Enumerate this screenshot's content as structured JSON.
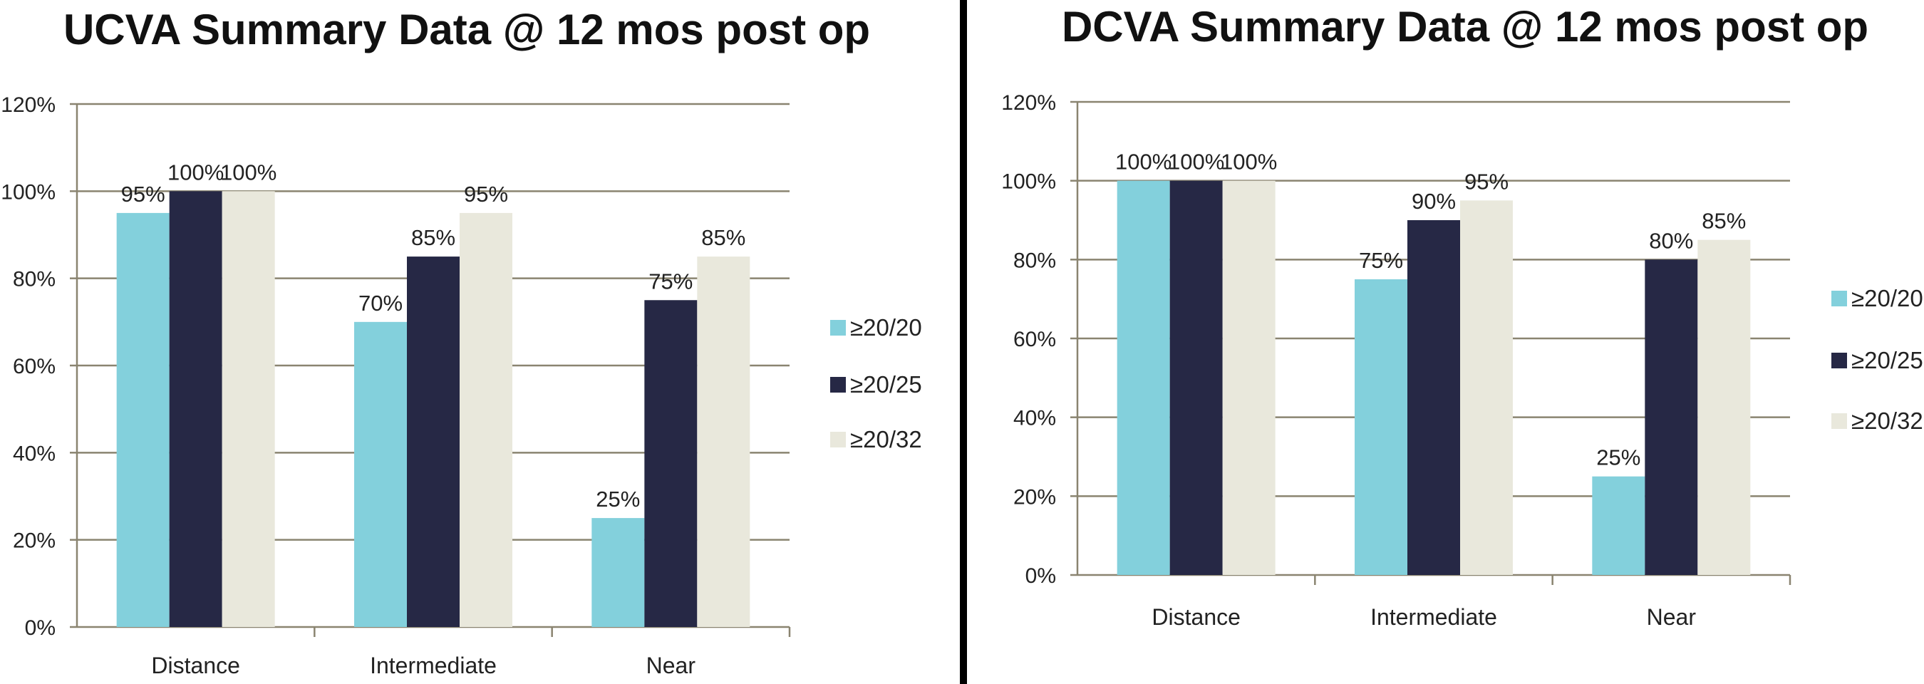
{
  "chart_data": [
    {
      "type": "bar",
      "title": "UCVA Summary Data @ 12 mos post op",
      "categories": [
        "Distance",
        "Intermediate",
        "Near"
      ],
      "series": [
        {
          "name": "≥20/20",
          "values": [
            95,
            70,
            25
          ],
          "labels": [
            "95%",
            "70%",
            "25%"
          ]
        },
        {
          "name": "≥20/25",
          "values": [
            100,
            85,
            75
          ],
          "labels": [
            "100%",
            "85%",
            "75%"
          ]
        },
        {
          "name": "≥20/32",
          "values": [
            100,
            95,
            85
          ],
          "labels": [
            "100%",
            "95%",
            "85%"
          ]
        }
      ],
      "ylim": [
        0,
        120
      ],
      "yticks": [
        "0%",
        "20%",
        "40%",
        "60%",
        "80%",
        "100%",
        "120%"
      ],
      "grid": true,
      "legend_position": "right",
      "xlabel": "",
      "ylabel": ""
    },
    {
      "type": "bar",
      "title": "DCVA Summary Data @ 12 mos post op",
      "categories": [
        "Distance",
        "Intermediate",
        "Near"
      ],
      "series": [
        {
          "name": "≥20/20",
          "values": [
            100,
            75,
            25
          ],
          "labels": [
            "100%",
            "75%",
            "25%"
          ]
        },
        {
          "name": "≥20/25",
          "values": [
            100,
            90,
            80
          ],
          "labels": [
            "100%",
            "90%",
            "80%"
          ]
        },
        {
          "name": "≥20/32",
          "values": [
            100,
            95,
            85
          ],
          "labels": [
            "100%",
            "95%",
            "85%"
          ]
        }
      ],
      "ylim": [
        0,
        120
      ],
      "yticks": [
        "0%",
        "20%",
        "40%",
        "60%",
        "80%",
        "100%",
        "120%"
      ],
      "grid": true,
      "legend_position": "right",
      "xlabel": "",
      "ylabel": ""
    }
  ],
  "colors": {
    "series": [
      "#83d0dc",
      "#262845",
      "#e9e8dc"
    ],
    "divider": "#000000",
    "gridline": "#8a8470"
  }
}
